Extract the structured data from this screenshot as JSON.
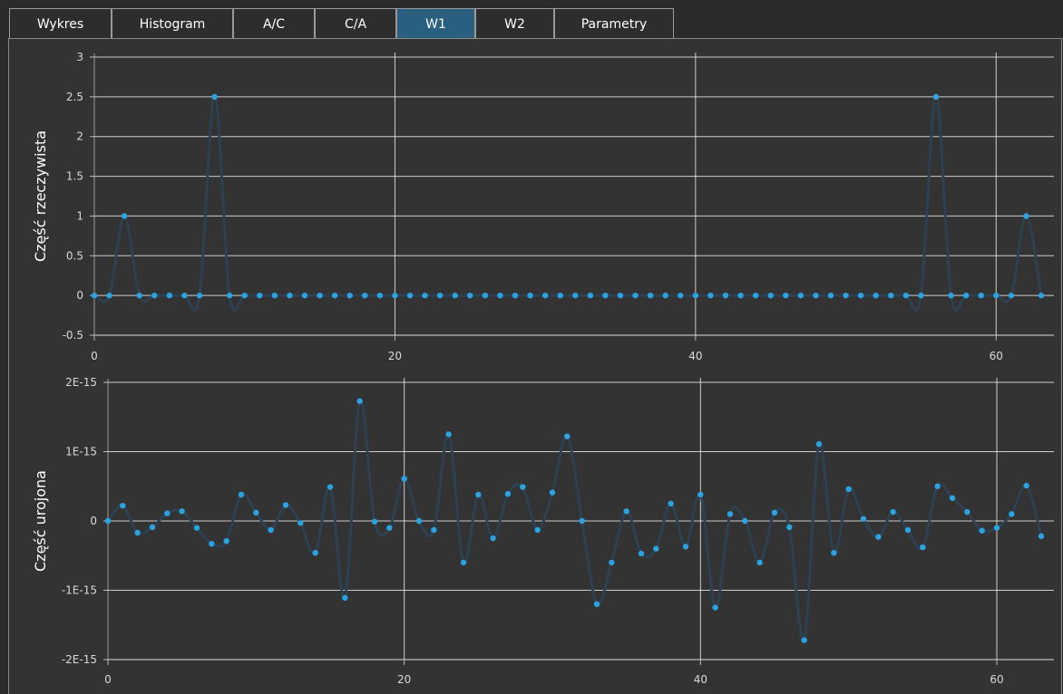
{
  "tabs": [
    {
      "label": "Wykres",
      "active": false
    },
    {
      "label": "Histogram",
      "active": false
    },
    {
      "label": "A/C",
      "active": false
    },
    {
      "label": "C/A",
      "active": false
    },
    {
      "label": "W1",
      "active": true
    },
    {
      "label": "W2",
      "active": false
    },
    {
      "label": "Parametry",
      "active": false
    }
  ],
  "colors": {
    "accent": "#2a5f80",
    "point": "#2aa3e0",
    "curve": "#2d4152",
    "grid": "#e8e8e8",
    "background": "#333333"
  },
  "chart_data": [
    {
      "type": "line",
      "ylabel": "Część rzeczywista",
      "xlim": [
        0,
        63
      ],
      "ylim": [
        -0.5,
        3
      ],
      "xticks": [
        "0",
        "20",
        "40",
        "60"
      ],
      "yticks": [
        "-0.5",
        "0",
        "0.5",
        "1",
        "1.5",
        "2",
        "2.5",
        "3"
      ],
      "x": [
        0,
        1,
        2,
        3,
        4,
        5,
        6,
        7,
        8,
        9,
        10,
        11,
        12,
        13,
        14,
        15,
        16,
        17,
        18,
        19,
        20,
        21,
        22,
        23,
        24,
        25,
        26,
        27,
        28,
        29,
        30,
        31,
        32,
        33,
        34,
        35,
        36,
        37,
        38,
        39,
        40,
        41,
        42,
        43,
        44,
        45,
        46,
        47,
        48,
        49,
        50,
        51,
        52,
        53,
        54,
        55,
        56,
        57,
        58,
        59,
        60,
        61,
        62,
        63
      ],
      "y": [
        0,
        0,
        1,
        0,
        0,
        0,
        0,
        0,
        2.5,
        0,
        0,
        0,
        0,
        0,
        0,
        0,
        0,
        0,
        0,
        0,
        0,
        0,
        0,
        0,
        0,
        0,
        0,
        0,
        0,
        0,
        0,
        0,
        0,
        0,
        0,
        0,
        0,
        0,
        0,
        0,
        0,
        0,
        0,
        0,
        0,
        0,
        0,
        0,
        0,
        0,
        0,
        0,
        0,
        0,
        0,
        0,
        2.5,
        0,
        0,
        0,
        0,
        0,
        1,
        0
      ]
    },
    {
      "type": "line",
      "ylabel": "Część urojona",
      "xlim": [
        0,
        63
      ],
      "ylim": [
        -2e-15,
        2e-15
      ],
      "xticks": [
        "0",
        "20",
        "40",
        "60"
      ],
      "yticks": [
        "2E-15",
        "1E-15",
        "0",
        "-1E-15",
        "-2E-15"
      ],
      "x": [
        0,
        1,
        2,
        3,
        4,
        5,
        6,
        7,
        8,
        9,
        10,
        11,
        12,
        13,
        14,
        15,
        16,
        17,
        18,
        19,
        20,
        21,
        22,
        23,
        24,
        25,
        26,
        27,
        28,
        29,
        30,
        31,
        32,
        33,
        34,
        35,
        36,
        37,
        38,
        39,
        40,
        41,
        42,
        43,
        44,
        45,
        46,
        47,
        48,
        49,
        50,
        51,
        52,
        53,
        54,
        55,
        56,
        57,
        58,
        59,
        60,
        61,
        62,
        63
      ],
      "y": [
        0,
        2.2e-16,
        -1.7e-16,
        -9e-17,
        1.1e-16,
        1.4e-16,
        -1e-16,
        -3.3e-16,
        -2.9e-16,
        3.8e-16,
        1.2e-16,
        -1.3e-16,
        2.3e-16,
        -3e-17,
        -4.6e-16,
        4.9e-16,
        -1.11e-15,
        1.73e-15,
        -1e-17,
        -1e-16,
        6.1e-16,
        0,
        -1.3e-16,
        1.25e-15,
        -6e-16,
        3.8e-16,
        -2.5e-16,
        3.9e-16,
        4.9e-16,
        -1.3e-16,
        4.1e-16,
        1.22e-15,
        0,
        -1.2e-15,
        -6e-16,
        1.4e-16,
        -4.7e-16,
        -4e-16,
        2.5e-16,
        -3.7e-16,
        3.8e-16,
        -1.25e-15,
        1e-16,
        0,
        -6e-16,
        1.2e-16,
        -9e-17,
        -1.72e-15,
        1.11e-15,
        -4.6e-16,
        4.6e-16,
        3e-17,
        -2.3e-16,
        1.3e-16,
        -1.3e-16,
        -3.8e-16,
        5e-16,
        3.3e-16,
        1.3e-16,
        -1.4e-16,
        -1e-16,
        1e-16,
        5.1e-16,
        -2.2e-16
      ]
    }
  ]
}
